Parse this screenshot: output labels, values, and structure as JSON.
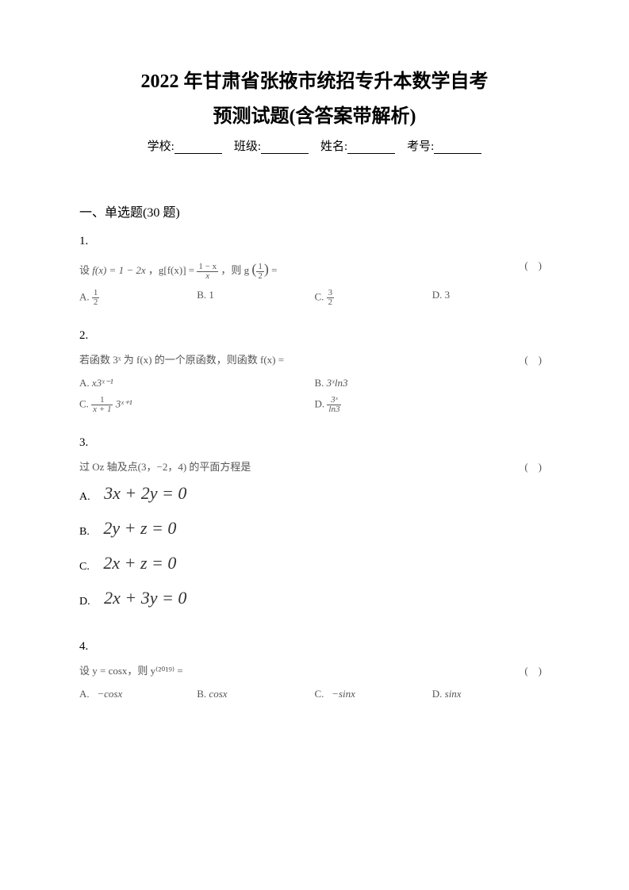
{
  "title_line1": "2022 年甘肃省张掖市统招专升本数学自考",
  "title_line2": "预测试题(含答案带解析)",
  "info": {
    "school_label": "学校:",
    "class_label": "班级:",
    "name_label": "姓名:",
    "exam_no_label": "考号:"
  },
  "section": "一、单选题(30 题)",
  "q1": {
    "num": "1.",
    "body_prefix": "设 ",
    "body_fx": "f(x) = 1 − 2x",
    "body_mid": "，g[f(x)] = ",
    "body_frac_num": "1 − x",
    "body_frac_den": "x",
    "body_suffix": "，则 g",
    "body_half": "1",
    "body_half_den": "2",
    "body_end": " =",
    "paren": "(　)",
    "opt_a_label": "A.",
    "opt_a_num": "1",
    "opt_a_den": "2",
    "opt_b_label": "B.",
    "opt_b": "1",
    "opt_c_label": "C.",
    "opt_c_num": "3",
    "opt_c_den": "2",
    "opt_d_label": "D.",
    "opt_d": "3"
  },
  "q2": {
    "num": "2.",
    "body": "若函数 3ˣ 为 f(x) 的一个原函数，则函数 f(x) =",
    "paren": "(　)",
    "opt_a_label": "A.",
    "opt_a": "x3ˣ⁻¹",
    "opt_b_label": "B.",
    "opt_b": "3ˣln3",
    "opt_c_label": "C.",
    "opt_c_prefix": "",
    "opt_c_num": "1",
    "opt_c_den": "x + 1",
    "opt_c_suffix": "3ˣ⁺¹",
    "opt_d_label": "D.",
    "opt_d_num": "3ˣ",
    "opt_d_den": "ln3"
  },
  "q3": {
    "num": "3.",
    "body": "过 Oz 轴及点(3，−2，4) 的平面方程是",
    "paren": "(　)",
    "opt_a_label": "A.",
    "opt_a": "3x + 2y = 0",
    "opt_b_label": "B.",
    "opt_b": "2y + z = 0",
    "opt_c_label": "C.",
    "opt_c": "2x + z = 0",
    "opt_d_label": "D.",
    "opt_d": "2x + 3y = 0"
  },
  "q4": {
    "num": "4.",
    "body": "设 y = cosx，则 y⁽²⁰¹⁹⁾ =",
    "paren": "(　)",
    "opt_a_label": "A.",
    "opt_a": "−cosx",
    "opt_b_label": "B.",
    "opt_b": "cosx",
    "opt_c_label": "C.",
    "opt_c": "−sinx",
    "opt_d_label": "D.",
    "opt_d": "sinx"
  }
}
